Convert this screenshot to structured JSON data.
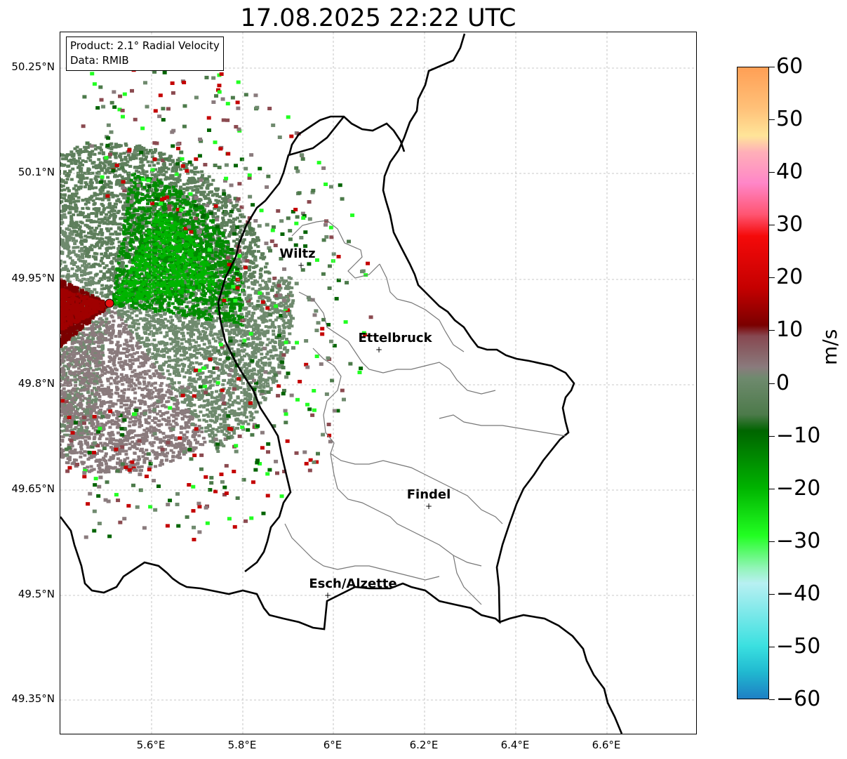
{
  "title": "17.08.2025 22:22 UTC",
  "info": {
    "product": "Product: 2.1° Radial Velocity",
    "data": "Data: RMIB"
  },
  "map": {
    "lat_ticks": [
      "50.25°N",
      "50.1°N",
      "49.95°N",
      "49.8°N",
      "49.65°N",
      "49.5°N",
      "49.35°N"
    ],
    "lon_ticks": [
      "5.6°E",
      "5.8°E",
      "6°E",
      "6.2°E",
      "6.4°E",
      "6.6°E"
    ],
    "cities": [
      {
        "name": "Wiltz"
      },
      {
        "name": "Ettelbruck"
      },
      {
        "name": "Findel"
      },
      {
        "name": "Esch/Alzette"
      }
    ],
    "radar_site_color": "#e81212"
  },
  "colorbar": {
    "unit": "m/s",
    "ticks": [
      "60",
      "50",
      "40",
      "30",
      "20",
      "10",
      "0",
      "−10",
      "−20",
      "−30",
      "−40",
      "−50",
      "−60"
    ],
    "min": -60,
    "max": 60,
    "stops": [
      {
        "v": 60,
        "c": "#ff9f55"
      },
      {
        "v": 52,
        "c": "#ffc27a"
      },
      {
        "v": 47,
        "c": "#ffe599"
      },
      {
        "v": 44,
        "c": "#ffb0b8"
      },
      {
        "v": 38,
        "c": "#ff86c8"
      },
      {
        "v": 32,
        "c": "#ff5470"
      },
      {
        "v": 28,
        "c": "#f50a0a"
      },
      {
        "v": 18,
        "c": "#c40000"
      },
      {
        "v": 11,
        "c": "#7a0000"
      },
      {
        "v": 9,
        "c": "#874750"
      },
      {
        "v": 3,
        "c": "#8a7b7d"
      },
      {
        "v": 1,
        "c": "#6f8a6e"
      },
      {
        "v": -6,
        "c": "#4c7a4a"
      },
      {
        "v": -9,
        "c": "#006400"
      },
      {
        "v": -20,
        "c": "#00b400"
      },
      {
        "v": -29,
        "c": "#22ff22"
      },
      {
        "v": -35,
        "c": "#90f5b5"
      },
      {
        "v": -38,
        "c": "#b8f0f2"
      },
      {
        "v": -50,
        "c": "#3ae0e0"
      },
      {
        "v": -55,
        "c": "#20b8d0"
      },
      {
        "v": -60,
        "c": "#1e7fc4"
      }
    ]
  }
}
